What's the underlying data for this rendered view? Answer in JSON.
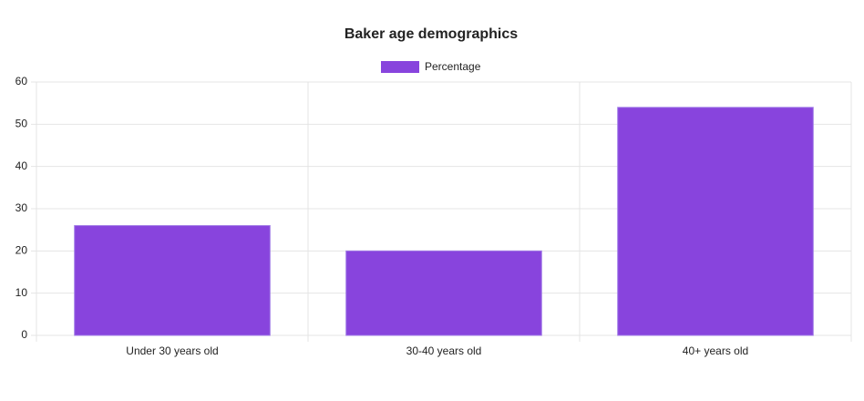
{
  "chart_data": {
    "type": "bar",
    "title": "Baker age demographics",
    "categories": [
      "Under 30 years old",
      "30-40 years old",
      "40+ years old"
    ],
    "series": [
      {
        "name": "Percentage",
        "color": "#8844dd",
        "values": [
          26,
          20,
          54
        ]
      }
    ],
    "ylim": [
      0,
      60
    ],
    "yticks": [
      0,
      10,
      20,
      30,
      40,
      50,
      60
    ],
    "grid": true,
    "legend": "top"
  }
}
